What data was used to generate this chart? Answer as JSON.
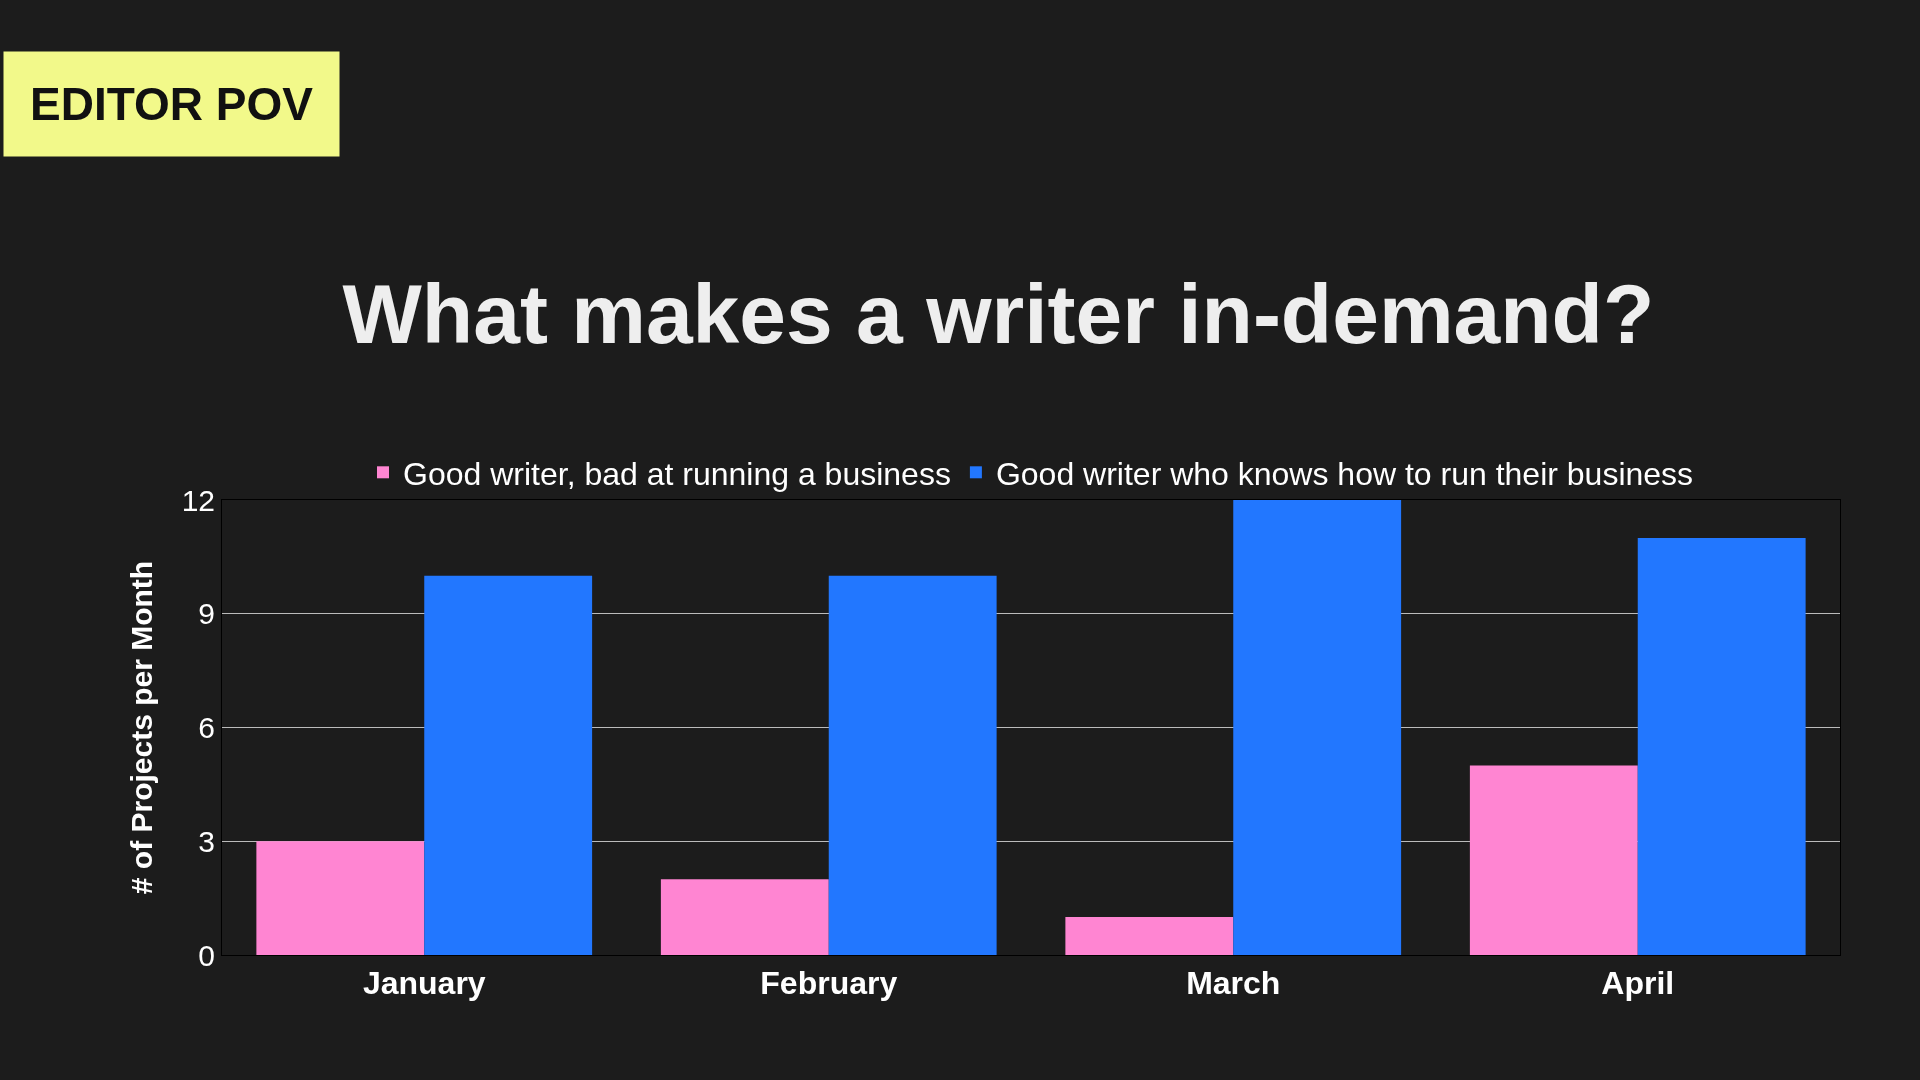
{
  "chart_data": {
    "type": "bar",
    "title": "What makes a writer in-demand?",
    "ylabel": "# of Projects per Month",
    "annotations": [
      "EDITOR POV"
    ],
    "categories": [
      "January",
      "February",
      "March",
      "April"
    ],
    "series": [
      {
        "name": "Good writer, bad at running a business",
        "color": "#ff85d2",
        "values": [
          3,
          2,
          1,
          5
        ]
      },
      {
        "name": "Good writer who knows how to run their business",
        "color": "#2277ff",
        "values": [
          10,
          10,
          12,
          11
        ]
      }
    ],
    "ylim": [
      0,
      12
    ],
    "yticks": [
      0,
      3,
      6,
      9,
      12
    ],
    "grid": "y",
    "legend": "top"
  }
}
